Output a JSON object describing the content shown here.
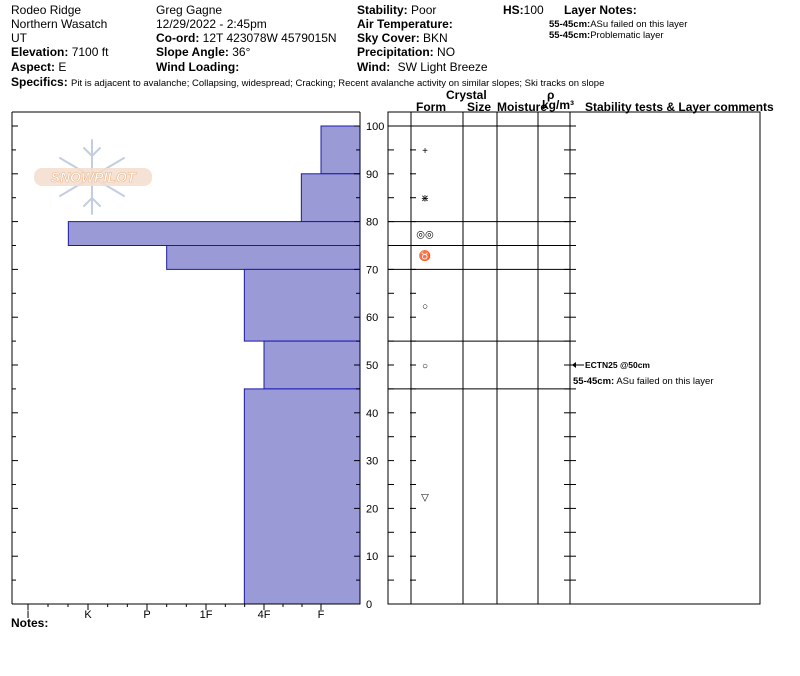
{
  "header": {
    "location": "Rodeo Ridge",
    "range": "Northern Wasatch",
    "state": "UT",
    "elevation_label": "Elevation:",
    "elevation_value": "7100 ft",
    "aspect_label": "Aspect:",
    "aspect_value": "E",
    "observer": "Greg Gagne",
    "datetime": "12/29/2022 - 2:45pm",
    "coord_label": "Co-ord:",
    "coord_value": "12T 423078W 4579015N",
    "slope_label": "Slope Angle:",
    "slope_value": "36°",
    "wind_loading_label": "Wind Loading:",
    "wind_loading_value": "",
    "stability_label": "Stability:",
    "stability_value": "Poor",
    "air_temp_label": "Air Temperature:",
    "air_temp_value": "",
    "sky_label": "Sky Cover:",
    "sky_value": "BKN",
    "precip_label": "Precipitation:",
    "precip_value": "NO",
    "wind_label": "Wind:",
    "wind_value": "SW Light Breeze",
    "hs_label": "HS:",
    "hs_value": "100",
    "layer_notes_label": "Layer Notes:",
    "layer_notes": [
      {
        "depth": "55-45cm:",
        "text": "ASu failed on this layer"
      },
      {
        "depth": "55-45cm:",
        "text": "Problematic layer"
      }
    ],
    "specifics_label": "Specifics:",
    "specifics_value": "Pit is adjacent to avalanche; Collapsing, widespread; Cracking; Recent avalanche activity on similar slopes; Ski tracks on slope"
  },
  "logo_text": "SNOWPILOT",
  "columns": {
    "crystal": "Crystal",
    "form": "Form",
    "size": "Size",
    "moisture": "Moisture",
    "rho": "ρ",
    "density_unit": "kg/m³",
    "comments": "Stability tests & Layer comments"
  },
  "notes_label": "Notes:",
  "chart_data": {
    "type": "bar",
    "orientation": "horizontal",
    "x_categories": [
      "I",
      "K",
      "P",
      "1F",
      "4F",
      "F"
    ],
    "y_ticks": [
      "100",
      "90",
      "80",
      "70",
      "60",
      "50",
      "40",
      "30",
      "20",
      "10",
      "0"
    ],
    "ylim": [
      0,
      100
    ],
    "ylabel": "",
    "xlabel": "",
    "hardness_layers": [
      {
        "top": 100,
        "bottom": 90,
        "hardness": "F"
      },
      {
        "top": 90,
        "bottom": 80,
        "hardness": "F+"
      },
      {
        "top": 80,
        "bottom": 75,
        "hardness": "K+"
      },
      {
        "top": 75,
        "bottom": 70,
        "hardness": "P-"
      },
      {
        "top": 70,
        "bottom": 55,
        "hardness": "4F+"
      },
      {
        "top": 55,
        "bottom": 45,
        "hardness": "4F"
      },
      {
        "top": 45,
        "bottom": 0,
        "hardness": "4F+"
      }
    ],
    "layer_boundaries": [
      100,
      80,
      75,
      70,
      55,
      45,
      0
    ],
    "grain_forms": [
      {
        "depth": 95,
        "symbol": "+"
      },
      {
        "depth": 85,
        "symbol": "⋇"
      },
      {
        "depth": 77.5,
        "symbol": "◎◎"
      },
      {
        "depth": 73,
        "symbol": "♉"
      },
      {
        "depth": 62.5,
        "symbol": "○"
      },
      {
        "depth": 50,
        "symbol": "○"
      },
      {
        "depth": 22.5,
        "symbol": "▽"
      }
    ],
    "stability_tests": [
      {
        "depth": 50,
        "label": "ECTN25 @50cm"
      }
    ],
    "layer_comments": [
      {
        "depth": "55-45cm:",
        "text": "ASu failed on this layer"
      }
    ],
    "colors": {
      "bar_fill": "#9a9ad6",
      "bar_stroke": "#1a1ab0"
    }
  }
}
